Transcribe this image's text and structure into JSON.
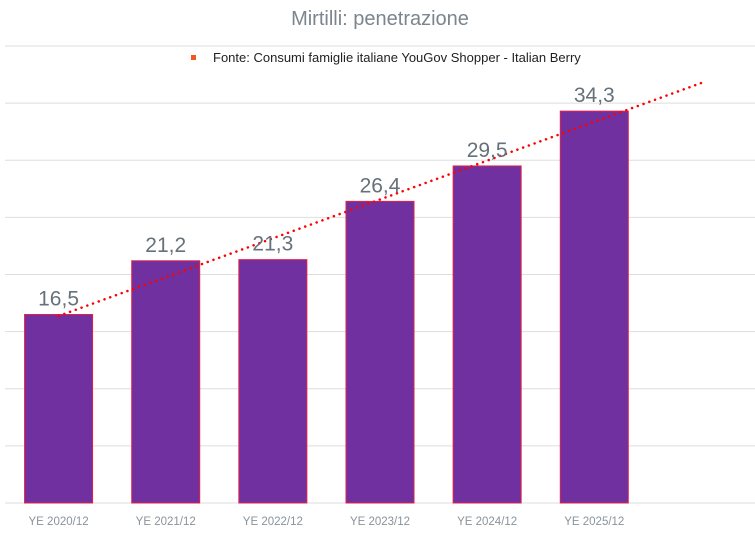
{
  "chart_data": {
    "type": "bar",
    "title": "Mirtilli: penetrazione",
    "categories": [
      "YE 2020/12",
      "YE 2021/12",
      "YE 2022/12",
      "YE 2023/12",
      "YE 2024/12",
      "YE 2025/12"
    ],
    "values": [
      16.5,
      21.2,
      21.3,
      26.4,
      29.5,
      34.3
    ],
    "data_labels": [
      "16,5",
      "21,2",
      "21,3",
      "26,4",
      "29,5",
      "34,3"
    ],
    "legend": [
      "Fonte: Consumi famiglie italiane YouGov Shopper - Italian Berry"
    ],
    "legend_position": "top",
    "trendline": {
      "type": "linear",
      "forward_periods": 1
    },
    "ylim": [
      0,
      40
    ],
    "ytick_step": 5,
    "grid": true,
    "xlabel": "",
    "ylabel": "",
    "colors": {
      "bar": "#7030a0",
      "bar_border": "#e0204a",
      "trend": "#ff0000",
      "legend_marker": "#f05a1e"
    }
  }
}
